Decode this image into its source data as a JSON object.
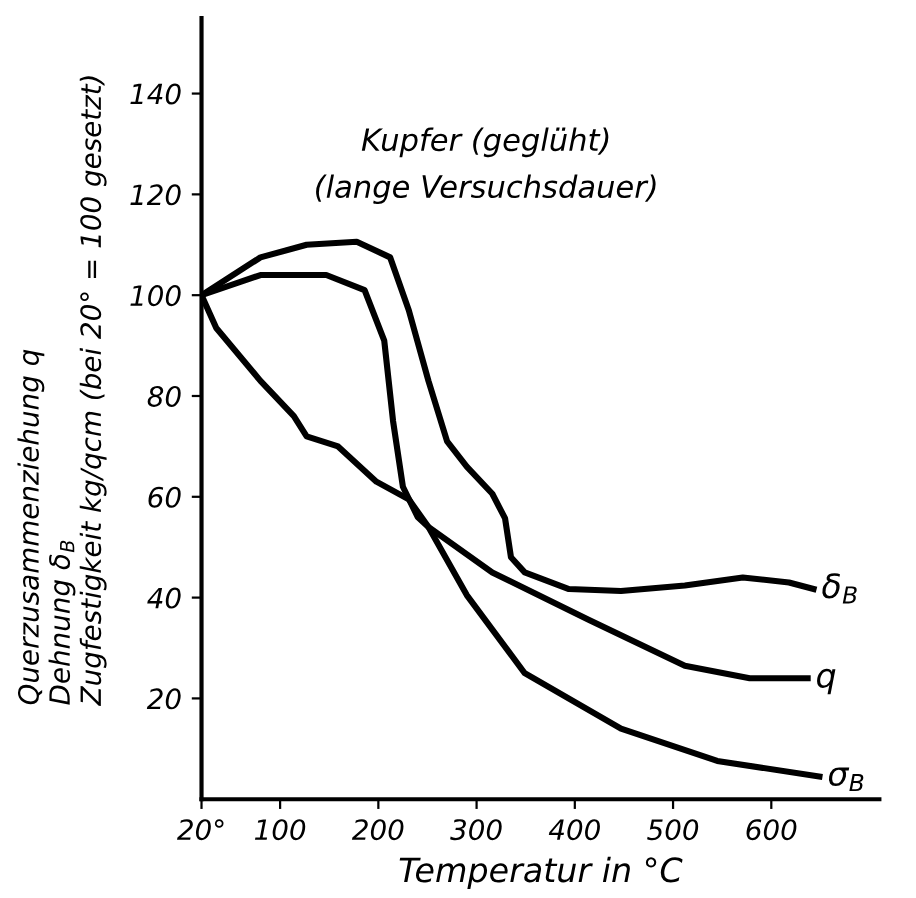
{
  "chart_data": {
    "type": "line",
    "title": "Kupfer (geglüht)",
    "subtitle": "(lange Versuchsdauer)",
    "xlabel": "Temperatur in °C",
    "ylabel": "Querzusammenziehung q\nDehnung δ$_{B}$\nZugfestigkeit kg/qcm (bei 20° = 100 gesetzt)",
    "xlim": [
      20,
      710
    ],
    "xticks": [
      {
        "value": 20,
        "label": "20°"
      },
      100,
      200,
      300,
      400,
      500,
      600
    ],
    "ylim": [
      0,
      155
    ],
    "yticks": [
      20,
      40,
      60,
      80,
      100,
      120,
      140
    ],
    "grid": false,
    "legend": false,
    "marker": "none",
    "line_style": "solid",
    "series": [
      {
        "name": "δ$_{B}$",
        "color": "#000000",
        "x": [
          20,
          80,
          127,
          178,
          212,
          231,
          251,
          270,
          290,
          316,
          329,
          335,
          349,
          394,
          447,
          512,
          571,
          618,
          643
        ],
        "values": [
          100,
          107.5,
          110,
          110.6,
          107.5,
          97,
          83,
          71,
          66,
          60.6,
          55.7,
          48,
          45,
          41.7,
          41.3,
          42.4,
          44,
          43,
          41.7
        ]
      },
      {
        "name": "q",
        "color": "#000000",
        "x": [
          20,
          80,
          147,
          186,
          206,
          215,
          225,
          240,
          251,
          316,
          414,
          512,
          578,
          637
        ],
        "values": [
          100,
          104,
          104,
          101,
          91,
          75,
          62,
          56,
          54,
          45,
          35.6,
          26.5,
          24,
          24
        ]
      },
      {
        "name": "σ$_{B}$",
        "color": "#000000",
        "x": [
          20,
          35,
          80,
          114,
          127,
          159,
          198,
          231,
          251,
          290,
          349,
          447,
          545,
          649
        ],
        "values": [
          100,
          93.5,
          83,
          76,
          72,
          70,
          63,
          59.5,
          54,
          40.5,
          25,
          14,
          7.6,
          4.5
        ]
      }
    ]
  }
}
